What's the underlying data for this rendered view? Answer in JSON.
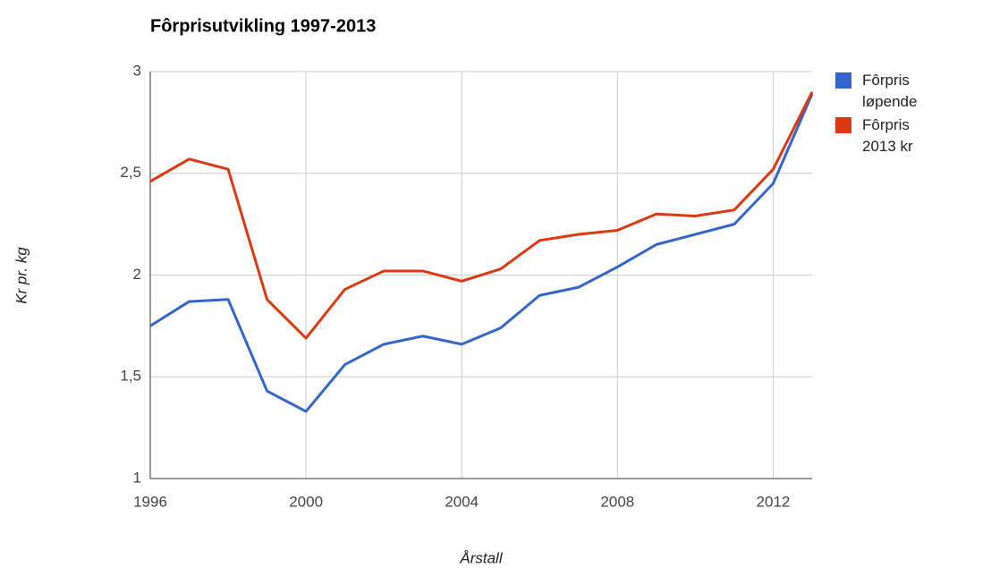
{
  "chart_data": {
    "type": "line",
    "title": "Fôrprisutvikling 1997-2013",
    "xlabel": "Årstall",
    "ylabel": "Kr pr. kg",
    "x": [
      1996,
      1997,
      1998,
      1999,
      2000,
      2001,
      2002,
      2003,
      2004,
      2005,
      2006,
      2007,
      2008,
      2009,
      2010,
      2011,
      2012,
      2013
    ],
    "series": [
      {
        "name": "Fôrpris løpende",
        "color": "#3366cc",
        "values": [
          1.75,
          1.87,
          1.88,
          1.43,
          1.33,
          1.56,
          1.66,
          1.7,
          1.66,
          1.74,
          1.9,
          1.94,
          2.04,
          2.15,
          2.2,
          2.25,
          2.45,
          2.89
        ]
      },
      {
        "name": "Fôrpris 2013 kr",
        "color": "#dc3912",
        "values": [
          2.46,
          2.57,
          2.52,
          1.88,
          1.69,
          1.93,
          2.02,
          2.02,
          1.97,
          2.03,
          2.17,
          2.2,
          2.22,
          2.3,
          2.29,
          2.32,
          2.52,
          2.9
        ]
      }
    ],
    "xlim": [
      1996,
      2013
    ],
    "xticks": [
      1996,
      2000,
      2004,
      2008,
      2012
    ],
    "ylim": [
      1,
      3
    ],
    "yticks": [
      1,
      {
        "value": 1.5,
        "label": "1,5"
      },
      2,
      {
        "value": 2.5,
        "label": "2,5"
      },
      3
    ],
    "grid": true,
    "legend": "right"
  }
}
